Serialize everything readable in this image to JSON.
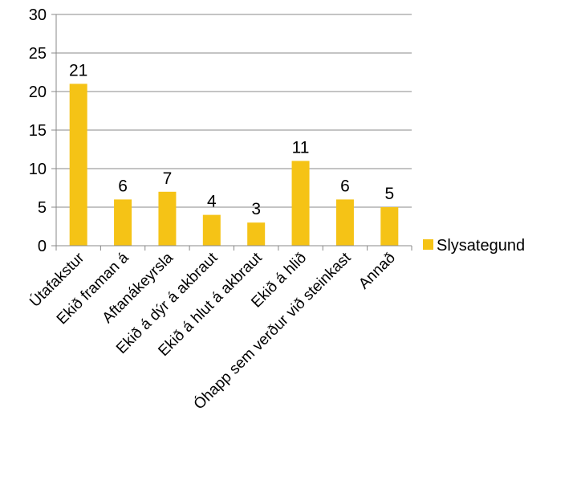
{
  "chart_data": {
    "type": "bar",
    "categories": [
      "Útafakstur",
      "Ekið framan á",
      "Aftanákeyrsla",
      "Ekið á dýr á akbraut",
      "Ekið á hlut á akbraut",
      "Ekið á hlið",
      "Óhapp sem verður við steinkast",
      "Annað"
    ],
    "series": [
      {
        "name": "Slysategund",
        "values": [
          21,
          6,
          7,
          4,
          3,
          11,
          6,
          5
        ]
      }
    ],
    "y_ticks": [
      "0",
      "5",
      "10",
      "15",
      "20",
      "25",
      "30"
    ],
    "ylim": [
      0,
      30
    ],
    "grid": true,
    "legend": "right",
    "bar_color": "#F5C316",
    "grid_color": "#888888"
  }
}
